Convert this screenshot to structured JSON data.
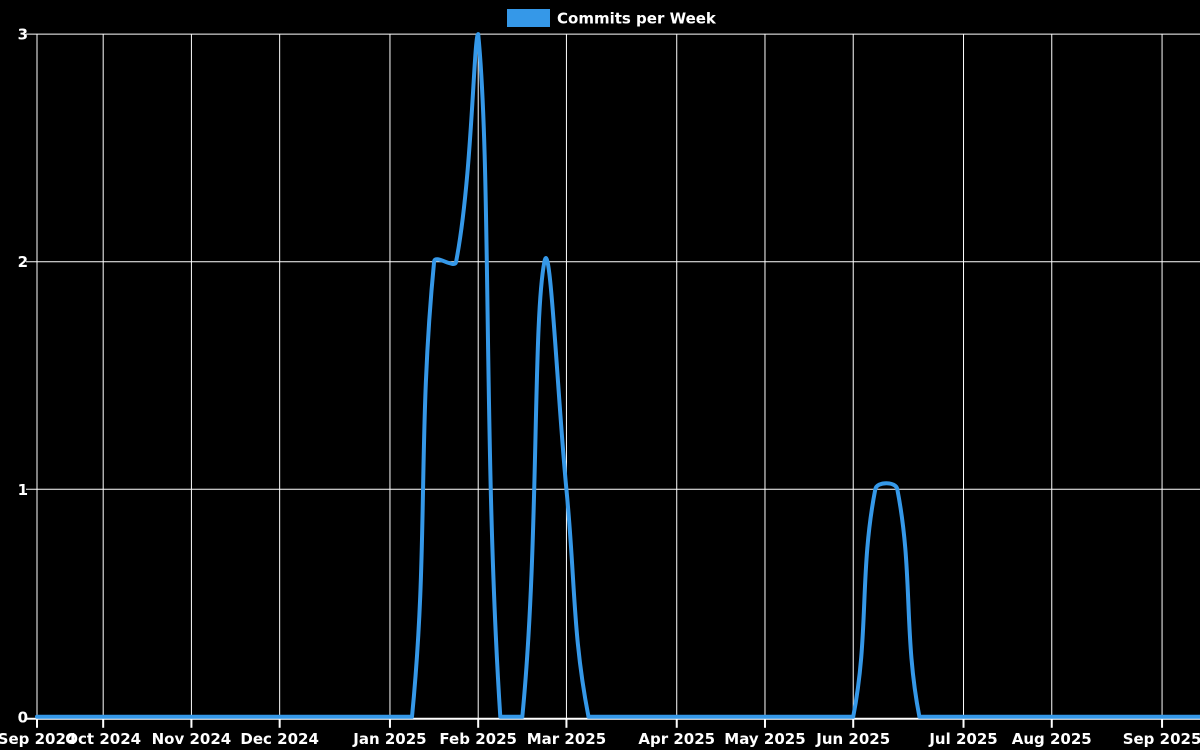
{
  "chart_data": {
    "type": "line",
    "legend_label": "Commits per Week",
    "legend_position": "top-center",
    "grid": true,
    "background_color": "#000000",
    "grid_color": "#ffffff",
    "text_color": "#ffffff",
    "line_color": "#3598e8",
    "x_unit": "week",
    "x_tick_labels": [
      "Sep 2024",
      "Oct 2024",
      "Nov 2024",
      "Dec 2024",
      "Jan 2025",
      "Feb 2025",
      "Mar 2025",
      "Apr 2025",
      "May 2025",
      "Jun 2025",
      "Jul 2025",
      "Aug 2025",
      "Sep 2025"
    ],
    "x_tick_week_index": [
      0,
      3,
      7,
      11,
      16,
      20,
      24,
      29,
      33,
      37,
      42,
      46,
      51
    ],
    "y_ticks": [
      0,
      1,
      2,
      3
    ],
    "ylim": [
      0,
      3
    ],
    "series": [
      {
        "name": "Commits per Week",
        "color": "#3598e8",
        "values": [
          0,
          0,
          0,
          0,
          0,
          0,
          0,
          0,
          0,
          0,
          0,
          0,
          0,
          0,
          0,
          0,
          0,
          0,
          2,
          2,
          3,
          0,
          0,
          2,
          1,
          0,
          0,
          0,
          0,
          0,
          0,
          0,
          0,
          0,
          0,
          0,
          0,
          0,
          1,
          1,
          0,
          0,
          0,
          0,
          0,
          0,
          0,
          0,
          0,
          0,
          0,
          0,
          0,
          0
        ]
      }
    ],
    "notable_points": [
      {
        "week_of": "mid-Jan 2025",
        "value": 2
      },
      {
        "week_of": "late-Jan 2025",
        "value": 2
      },
      {
        "week_of": "early-Feb 2025",
        "value": 3
      },
      {
        "week_of": "late-Feb 2025",
        "value": 2
      },
      {
        "week_of": "early-Mar 2025",
        "value": 1
      },
      {
        "week_of": "early-Jun 2025",
        "value": 1
      },
      {
        "week_of": "mid-Jun 2025",
        "value": 1
      }
    ]
  }
}
